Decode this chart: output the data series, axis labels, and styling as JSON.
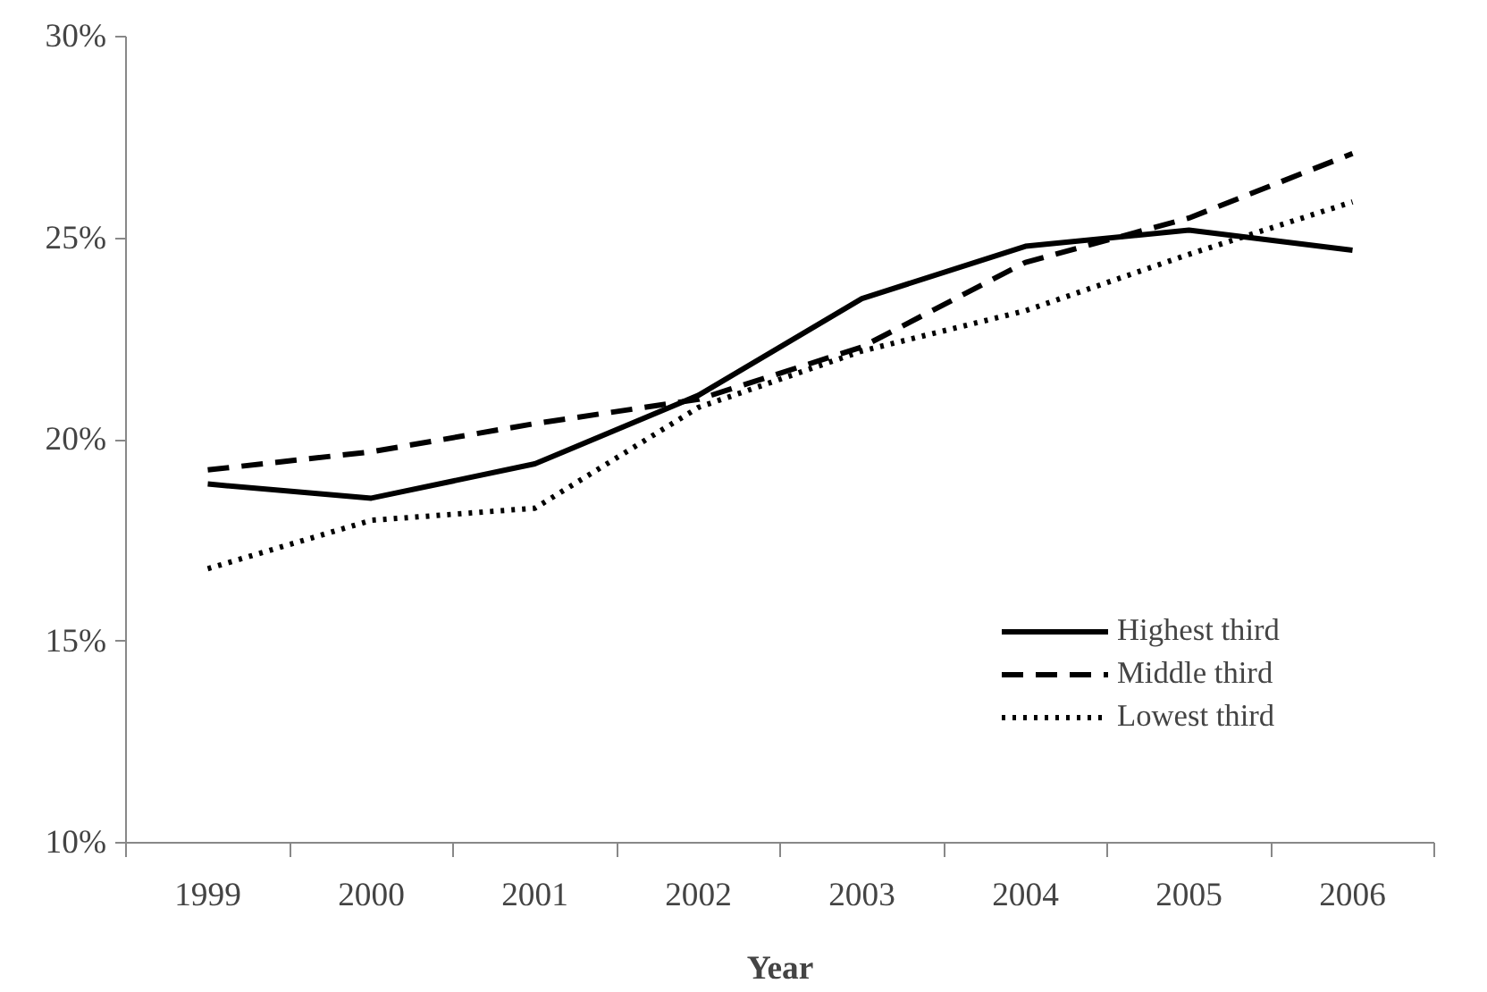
{
  "chart_data": {
    "type": "line",
    "xlabel": "Year",
    "categories": [
      "1999",
      "2000",
      "2001",
      "2002",
      "2003",
      "2004",
      "2005",
      "2006"
    ],
    "ylim": [
      10,
      30
    ],
    "yticks": [
      {
        "value": 10,
        "label": "10%"
      },
      {
        "value": 15,
        "label": "15%"
      },
      {
        "value": 20,
        "label": "20%"
      },
      {
        "value": 25,
        "label": "25%"
      },
      {
        "value": 30,
        "label": "30%"
      }
    ],
    "grid": false,
    "legend": "right",
    "marker": "none",
    "series": [
      {
        "name": "Highest third",
        "color": "#000000",
        "line_style": "solid",
        "values": [
          18.9,
          18.55,
          19.4,
          21.1,
          23.5,
          24.8,
          25.2,
          24.7
        ]
      },
      {
        "name": "Middle third",
        "color": "#000000",
        "line_style": "dashed",
        "values": [
          19.25,
          19.7,
          20.4,
          21.0,
          22.3,
          24.4,
          25.5,
          27.1
        ]
      },
      {
        "name": "Lowest third",
        "color": "#000000",
        "line_style": "dotted",
        "values": [
          16.8,
          18.0,
          18.3,
          20.8,
          22.2,
          23.2,
          24.6,
          25.9
        ]
      }
    ]
  }
}
